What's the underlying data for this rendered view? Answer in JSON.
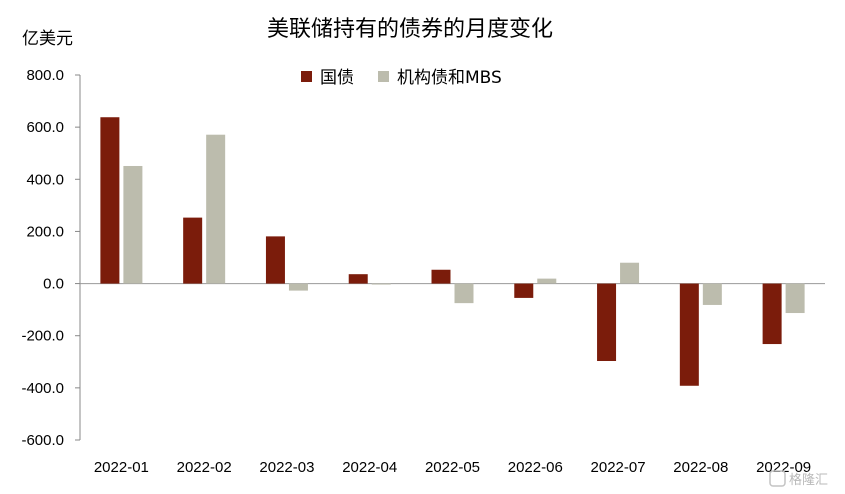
{
  "chart_data": {
    "type": "bar",
    "title": "美联储持有的债券的月度变化",
    "ylabel": "亿美元",
    "ylim": [
      -600,
      800
    ],
    "yticks": [
      800,
      600,
      400,
      200,
      0,
      -200,
      -400,
      -600
    ],
    "ytick_labels": [
      "800.0",
      "600.0",
      "400.0",
      "200.0",
      "0.0",
      "-200.0",
      "-400.0",
      "-600.0"
    ],
    "categories": [
      "2022-01",
      "2022-02",
      "2022-03",
      "2022-04",
      "2022-05",
      "2022-06",
      "2022-07",
      "2022-08",
      "2022-09"
    ],
    "series": [
      {
        "name": "国债",
        "color": "#7b1c0b",
        "values": [
          638,
          253,
          181,
          36,
          53,
          -55,
          -297,
          -392,
          -232
        ]
      },
      {
        "name": "机构债和MBS",
        "color": "#bcbcad",
        "values": [
          451,
          571,
          -27,
          -3,
          -75,
          19,
          80,
          -82,
          -113
        ]
      }
    ],
    "legend_position": "top-center",
    "grid": false
  },
  "watermark": "格隆汇"
}
